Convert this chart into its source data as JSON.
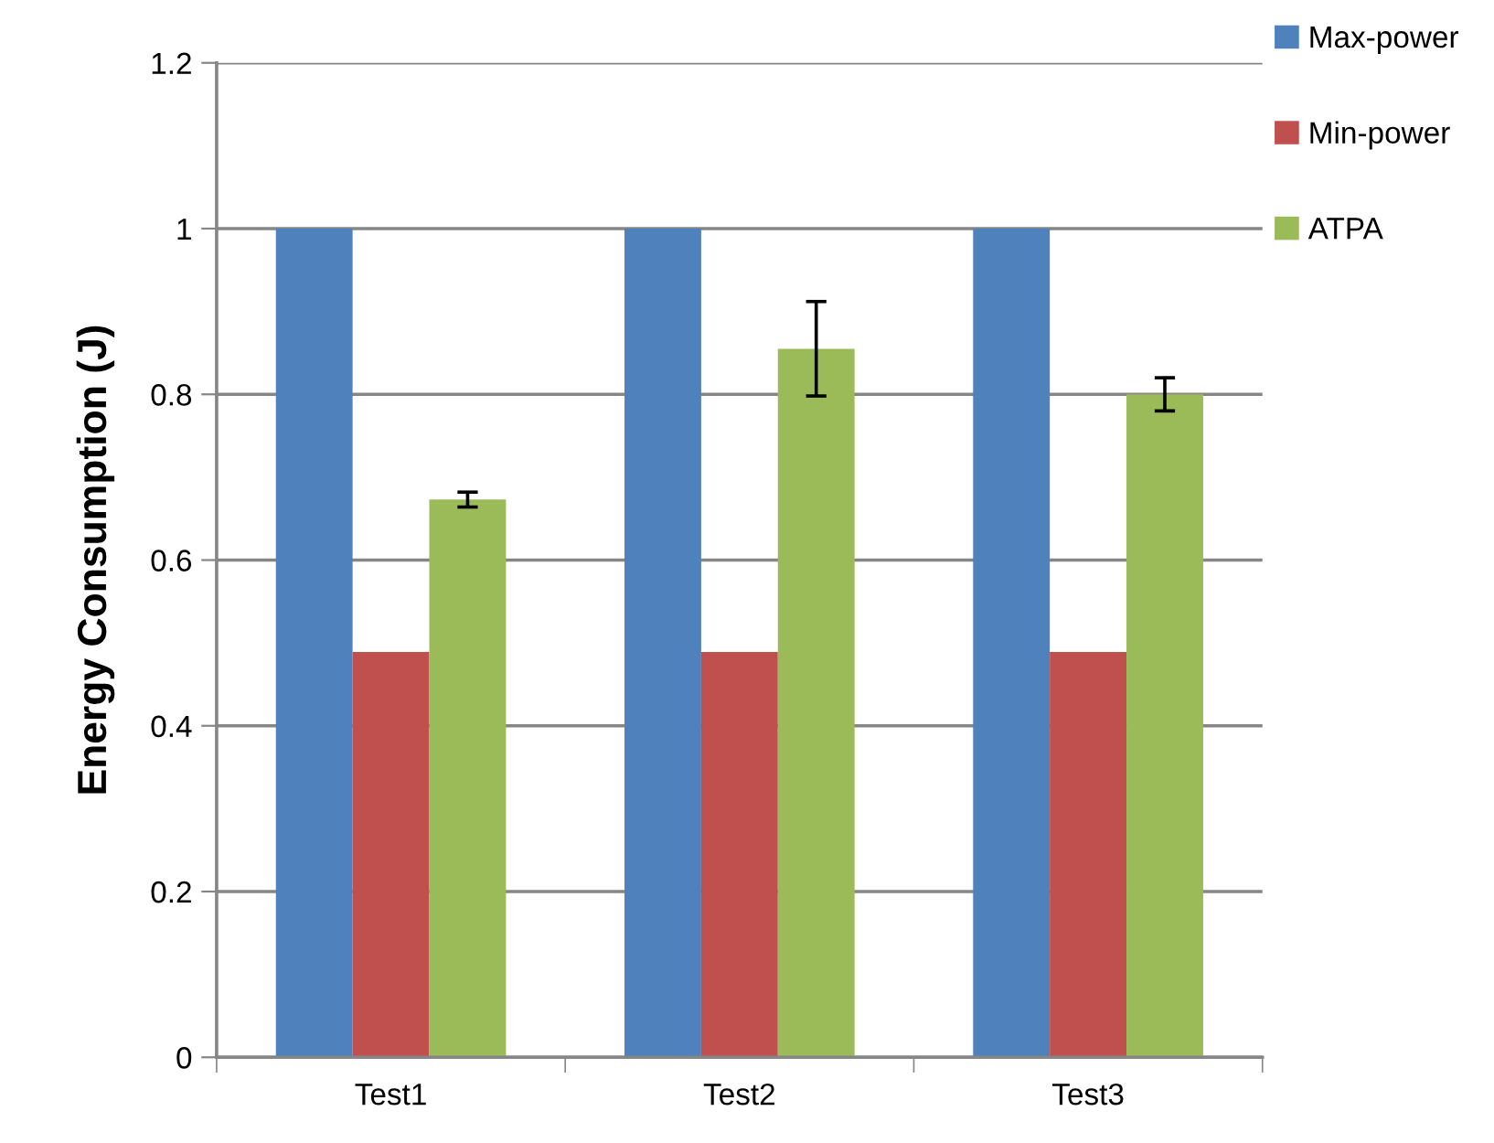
{
  "chart_data": {
    "type": "bar",
    "ylabel": "Energy Consumption (J)",
    "categories": [
      "Test1",
      "Test2",
      "Test3"
    ],
    "series": [
      {
        "name": "Max-power",
        "color": "#4f81bd",
        "values": [
          1.0,
          1.0,
          1.0
        ]
      },
      {
        "name": "Min-power",
        "color": "#c0504d",
        "values": [
          0.489,
          0.489,
          0.489
        ]
      },
      {
        "name": "ATPA",
        "color": "#9bbb59",
        "values": [
          0.673,
          0.855,
          0.8
        ],
        "errors": [
          0.009,
          0.057,
          0.02
        ]
      }
    ],
    "ylim": [
      0,
      1.2
    ],
    "yticks": [
      0,
      0.2,
      0.4,
      0.6,
      0.8,
      1,
      1.2
    ],
    "grid": "y",
    "legend": "right"
  }
}
